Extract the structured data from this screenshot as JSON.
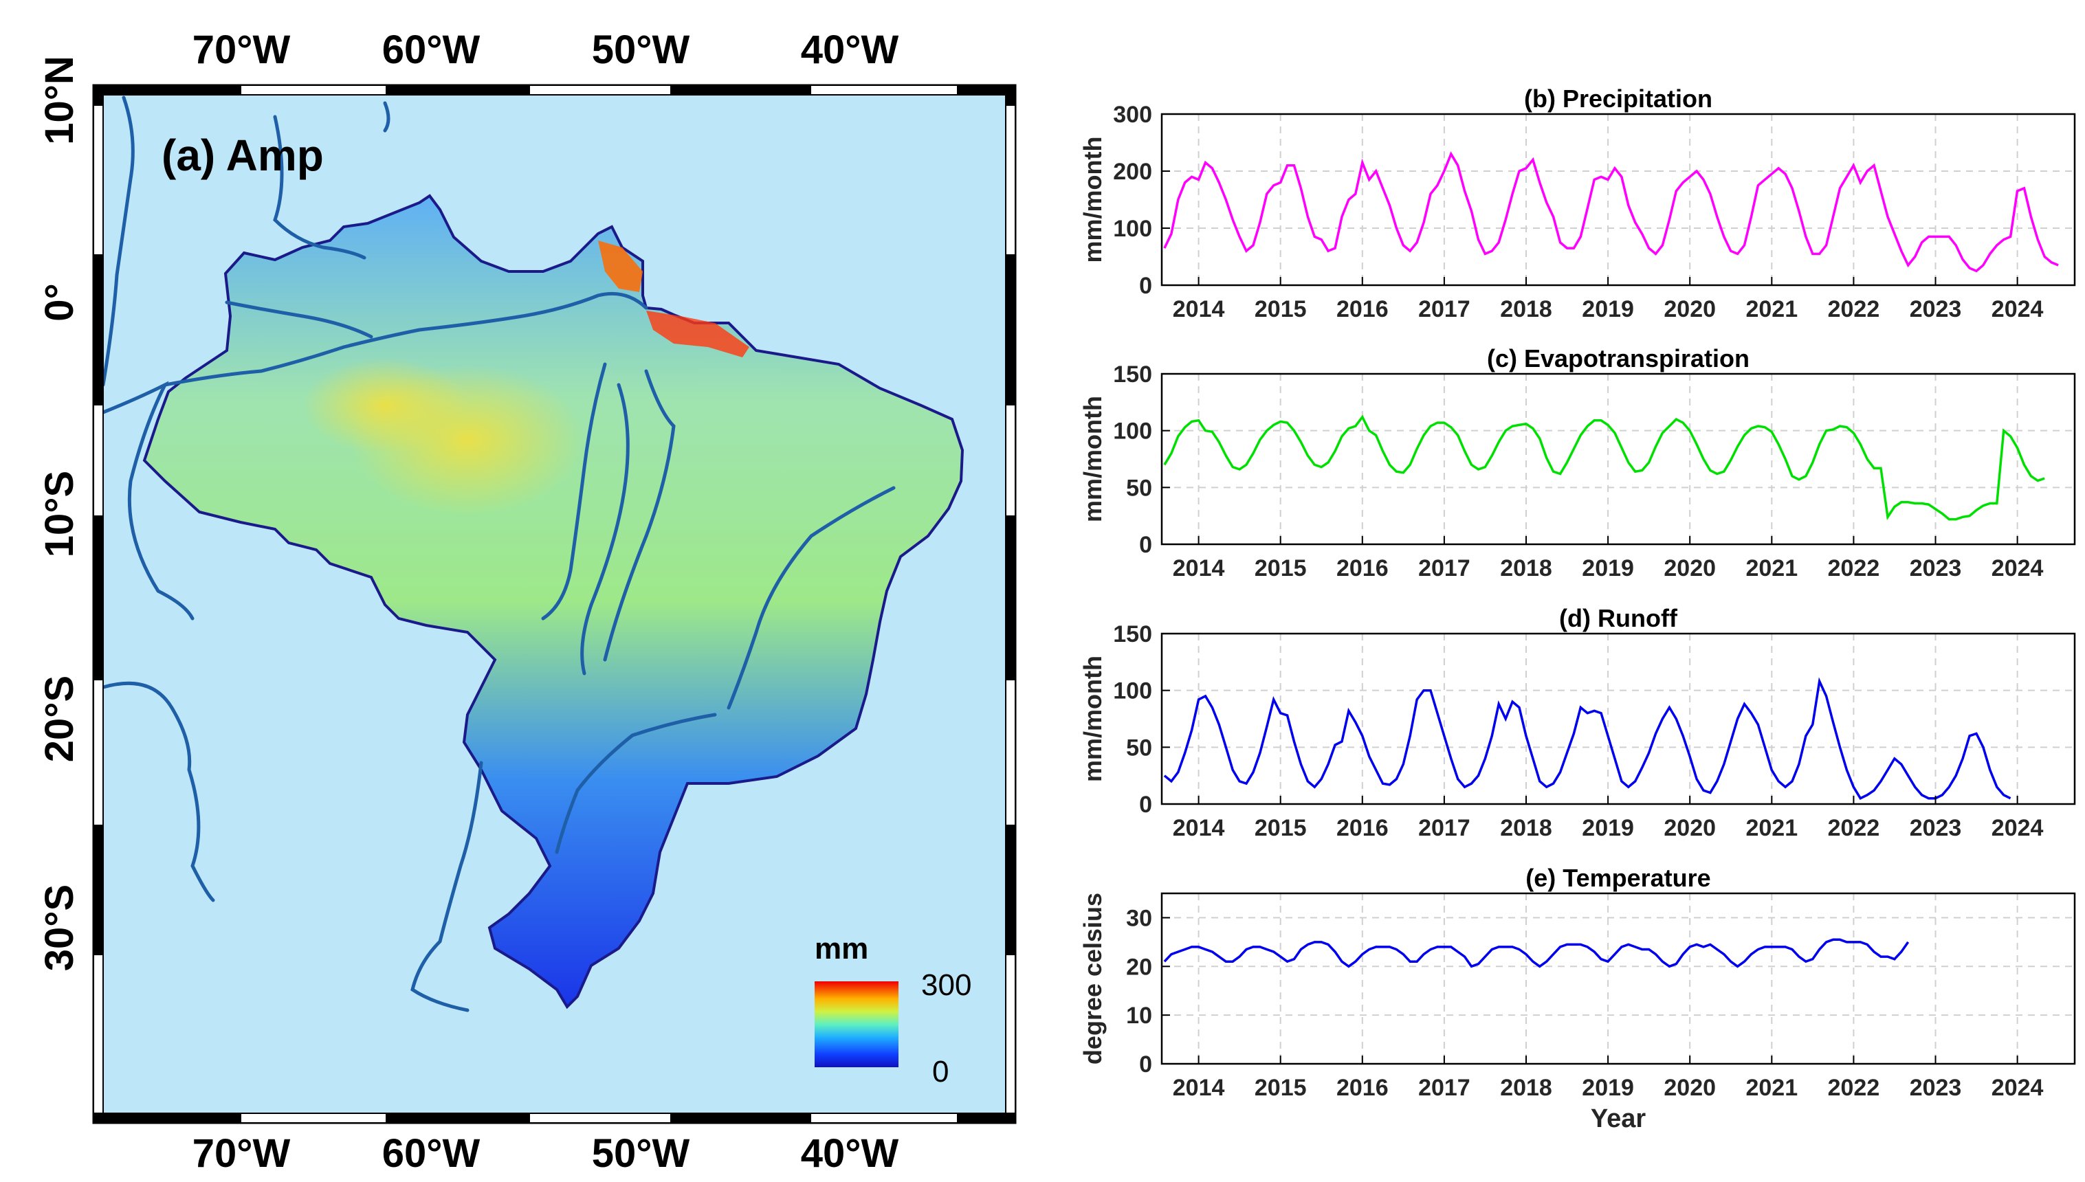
{
  "map": {
    "title": "(a) Amp",
    "lon_ticks": [
      "70°W",
      "60°W",
      "50°W",
      "40°W"
    ],
    "lat_ticks": [
      "10°N",
      "0°",
      "10°S",
      "20°S",
      "30°S"
    ],
    "colorbar": {
      "unit": "mm",
      "max_label": "300",
      "min_label": "0",
      "range": [
        0,
        300
      ]
    }
  },
  "chart_data": [
    {
      "type": "line",
      "title": "(b) Precipitation",
      "ylabel": "mm/month",
      "xlabel": "",
      "ylim": [
        0,
        300
      ],
      "yticks": [
        0,
        100,
        200,
        300
      ],
      "xlim": [
        2013.55,
        2024.7
      ],
      "xticks": [
        2014,
        2015,
        2016,
        2017,
        2018,
        2019,
        2020,
        2021,
        2022,
        2023,
        2024
      ],
      "color": "#ff00ff",
      "x_start": 2013.583,
      "x_step": 0.08333,
      "values": [
        65,
        90,
        150,
        180,
        190,
        185,
        215,
        205,
        180,
        150,
        115,
        85,
        60,
        70,
        110,
        160,
        175,
        180,
        210,
        210,
        170,
        120,
        85,
        80,
        60,
        65,
        120,
        150,
        160,
        215,
        185,
        200,
        170,
        140,
        100,
        70,
        60,
        75,
        110,
        160,
        175,
        200,
        230,
        210,
        165,
        130,
        80,
        55,
        60,
        75,
        115,
        160,
        200,
        205,
        220,
        180,
        145,
        120,
        75,
        65,
        65,
        85,
        135,
        185,
        190,
        185,
        205,
        190,
        140,
        110,
        90,
        65,
        55,
        70,
        115,
        165,
        180,
        190,
        200,
        185,
        160,
        120,
        85,
        60,
        55,
        70,
        120,
        175,
        185,
        195,
        205,
        195,
        170,
        130,
        85,
        55,
        55,
        70,
        120,
        170,
        190,
        210,
        180,
        200,
        210,
        165,
        120,
        90,
        60,
        35,
        50,
        75,
        85,
        85,
        85,
        85,
        70,
        45,
        30,
        25,
        35,
        55,
        70,
        80,
        85,
        165,
        170,
        120,
        80,
        50,
        40,
        35
      ]
    },
    {
      "type": "line",
      "title": "(c) Evapotranspiration",
      "ylabel": "mm/month",
      "xlabel": "",
      "ylim": [
        0,
        150
      ],
      "yticks": [
        0,
        50,
        100,
        150
      ],
      "xlim": [
        2013.55,
        2024.7
      ],
      "xticks": [
        2014,
        2015,
        2016,
        2017,
        2018,
        2019,
        2020,
        2021,
        2022,
        2023,
        2024
      ],
      "color": "#00e000",
      "x_start": 2013.583,
      "x_step": 0.08333,
      "values": [
        70,
        80,
        95,
        103,
        108,
        109,
        100,
        99,
        90,
        78,
        68,
        66,
        70,
        80,
        92,
        100,
        105,
        108,
        107,
        100,
        90,
        78,
        70,
        68,
        72,
        82,
        95,
        102,
        104,
        112,
        100,
        96,
        82,
        70,
        64,
        63,
        70,
        84,
        96,
        104,
        107,
        107,
        103,
        96,
        82,
        70,
        66,
        68,
        78,
        90,
        100,
        104,
        105,
        106,
        102,
        93,
        76,
        64,
        62,
        72,
        84,
        96,
        104,
        109,
        109,
        105,
        98,
        85,
        72,
        64,
        65,
        72,
        86,
        98,
        104,
        110,
        107,
        100,
        88,
        75,
        65,
        62,
        64,
        74,
        86,
        96,
        102,
        104,
        103,
        99,
        88,
        75,
        60,
        57,
        60,
        72,
        88,
        100,
        101,
        104,
        103,
        98,
        88,
        75,
        67,
        67,
        24,
        33,
        37,
        37,
        36,
        36,
        35,
        31,
        27,
        22,
        22,
        24,
        25,
        30,
        34,
        36,
        36,
        100,
        95,
        85,
        70,
        60,
        56,
        58
      ]
    },
    {
      "type": "line",
      "title": "(d) Runoff",
      "ylabel": "mm/month",
      "xlabel": "",
      "ylim": [
        0,
        150
      ],
      "yticks": [
        0,
        50,
        100,
        150
      ],
      "xlim": [
        2013.55,
        2024.7
      ],
      "xticks": [
        2014,
        2015,
        2016,
        2017,
        2018,
        2019,
        2020,
        2021,
        2022,
        2023,
        2024
      ],
      "color": "#0000ee",
      "x_start": 2013.583,
      "x_step": 0.08333,
      "values": [
        25,
        20,
        28,
        45,
        65,
        92,
        95,
        85,
        70,
        50,
        30,
        20,
        18,
        28,
        45,
        68,
        92,
        80,
        78,
        55,
        35,
        20,
        15,
        22,
        35,
        52,
        55,
        82,
        72,
        60,
        42,
        30,
        18,
        17,
        22,
        35,
        60,
        92,
        100,
        100,
        80,
        60,
        40,
        22,
        15,
        18,
        25,
        40,
        60,
        88,
        75,
        90,
        85,
        60,
        40,
        20,
        15,
        18,
        28,
        45,
        62,
        85,
        80,
        82,
        80,
        60,
        40,
        20,
        15,
        20,
        32,
        45,
        62,
        75,
        85,
        75,
        60,
        42,
        22,
        12,
        10,
        20,
        35,
        55,
        75,
        88,
        80,
        70,
        50,
        30,
        20,
        15,
        20,
        35,
        60,
        70,
        108,
        95,
        72,
        50,
        30,
        15,
        5,
        8,
        12,
        20,
        30,
        40,
        35,
        25,
        15,
        8,
        5,
        5,
        8,
        15,
        25,
        40,
        60,
        62,
        50,
        30,
        15,
        8,
        5
      ]
    },
    {
      "type": "line",
      "title": "(e) Temperature",
      "ylabel": "degree celsius",
      "xlabel": "Year",
      "ylim": [
        0,
        35
      ],
      "yticks": [
        0,
        10,
        20,
        30
      ],
      "xlim": [
        2013.55,
        2024.7
      ],
      "xticks": [
        2014,
        2015,
        2016,
        2017,
        2018,
        2019,
        2020,
        2021,
        2022,
        2023,
        2024
      ],
      "color": "#0000ee",
      "x_start": 2013.583,
      "x_step": 0.08333,
      "values": [
        21,
        22.5,
        23,
        23.5,
        24,
        24,
        23.5,
        23,
        22,
        21,
        21,
        22,
        23.5,
        24,
        24,
        23.5,
        23,
        22,
        21,
        21.5,
        23.5,
        24.5,
        25,
        25,
        24.5,
        23,
        21,
        20,
        21,
        22.5,
        23.5,
        24,
        24,
        24,
        23.5,
        22.5,
        21,
        21,
        22.5,
        23.5,
        24,
        24,
        24,
        23,
        22,
        20,
        20.5,
        22,
        23.5,
        24,
        24,
        24,
        23.5,
        22.5,
        21,
        20,
        21,
        22.5,
        24,
        24.5,
        24.5,
        24.5,
        24,
        23,
        21.5,
        21,
        22.5,
        24,
        24.5,
        24,
        23.5,
        23.5,
        22.5,
        21,
        20,
        20.5,
        22.5,
        24,
        24.5,
        24,
        24.5,
        23.5,
        22.5,
        21,
        20,
        21,
        22.5,
        23.5,
        24,
        24,
        24,
        24,
        23.5,
        22,
        21,
        21.5,
        23.5,
        25,
        25.5,
        25.5,
        25,
        25,
        25,
        24.5,
        23,
        22,
        22,
        21.5,
        23,
        25
      ]
    }
  ]
}
